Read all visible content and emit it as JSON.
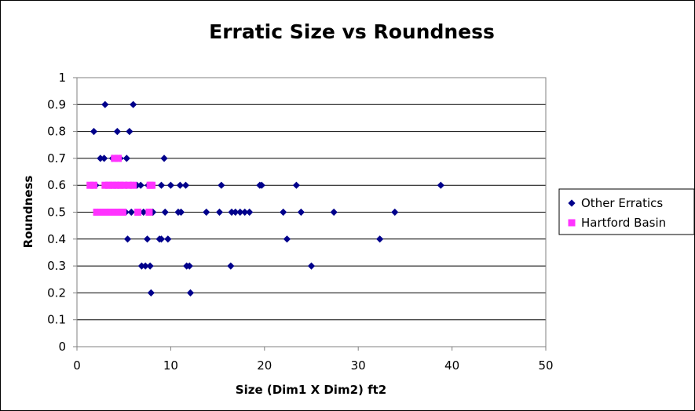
{
  "chart_data": {
    "type": "scatter",
    "title": "Erratic Size vs Roundness",
    "xlabel": "Size (Dim1 X Dim2) ft2",
    "ylabel": "Roundness",
    "xlim": [
      0,
      50
    ],
    "ylim": [
      0,
      1
    ],
    "x_ticks": [
      "0",
      "10",
      "20",
      "30",
      "40",
      "50"
    ],
    "y_ticks": [
      "0",
      "0.1",
      "0.2",
      "0.3",
      "0.4",
      "0.5",
      "0.6",
      "0.7",
      "0.8",
      "0.9",
      "1"
    ],
    "grid": "horizontal",
    "legend_position": "right",
    "series": [
      {
        "name": "Other Erratics",
        "marker": "diamond",
        "color": "#00008B",
        "points": [
          [
            3.0,
            0.9
          ],
          [
            6.0,
            0.9
          ],
          [
            1.8,
            0.8
          ],
          [
            4.3,
            0.8
          ],
          [
            5.6,
            0.8
          ],
          [
            2.5,
            0.7
          ],
          [
            2.9,
            0.7
          ],
          [
            3.8,
            0.7
          ],
          [
            4.6,
            0.7
          ],
          [
            5.3,
            0.7
          ],
          [
            9.3,
            0.7
          ],
          [
            2.0,
            0.6
          ],
          [
            3.1,
            0.6
          ],
          [
            3.7,
            0.6
          ],
          [
            4.1,
            0.6
          ],
          [
            4.4,
            0.6
          ],
          [
            5.3,
            0.6
          ],
          [
            6.0,
            0.6
          ],
          [
            6.4,
            0.6
          ],
          [
            6.8,
            0.6
          ],
          [
            7.6,
            0.6
          ],
          [
            9.0,
            0.6
          ],
          [
            10.0,
            0.6
          ],
          [
            11.0,
            0.6
          ],
          [
            11.6,
            0.6
          ],
          [
            15.4,
            0.6
          ],
          [
            19.5,
            0.6
          ],
          [
            19.7,
            0.6
          ],
          [
            23.4,
            0.6
          ],
          [
            38.8,
            0.6
          ],
          [
            2.2,
            0.5
          ],
          [
            3.3,
            0.5
          ],
          [
            4.5,
            0.5
          ],
          [
            5.2,
            0.5
          ],
          [
            5.8,
            0.5
          ],
          [
            7.1,
            0.5
          ],
          [
            7.8,
            0.5
          ],
          [
            8.1,
            0.5
          ],
          [
            9.4,
            0.5
          ],
          [
            10.8,
            0.5
          ],
          [
            11.1,
            0.5
          ],
          [
            13.8,
            0.5
          ],
          [
            15.2,
            0.5
          ],
          [
            16.5,
            0.5
          ],
          [
            16.9,
            0.5
          ],
          [
            17.4,
            0.5
          ],
          [
            17.9,
            0.5
          ],
          [
            18.4,
            0.5
          ],
          [
            22.0,
            0.5
          ],
          [
            23.9,
            0.5
          ],
          [
            27.4,
            0.5
          ],
          [
            33.9,
            0.5
          ],
          [
            5.4,
            0.4
          ],
          [
            7.5,
            0.4
          ],
          [
            8.8,
            0.4
          ],
          [
            9.0,
            0.4
          ],
          [
            9.7,
            0.4
          ],
          [
            22.4,
            0.4
          ],
          [
            32.3,
            0.4
          ],
          [
            6.9,
            0.3
          ],
          [
            7.3,
            0.3
          ],
          [
            7.8,
            0.3
          ],
          [
            11.7,
            0.3
          ],
          [
            12.0,
            0.3
          ],
          [
            16.4,
            0.3
          ],
          [
            25.0,
            0.3
          ],
          [
            7.9,
            0.2
          ],
          [
            12.1,
            0.2
          ]
        ]
      },
      {
        "name": "Hartford Basin",
        "marker": "square",
        "color": "#FF33FF",
        "points": [
          [
            4.0,
            0.7
          ],
          [
            4.4,
            0.7
          ],
          [
            1.4,
            0.6
          ],
          [
            1.8,
            0.6
          ],
          [
            3.0,
            0.6
          ],
          [
            3.4,
            0.6
          ],
          [
            3.8,
            0.6
          ],
          [
            4.2,
            0.6
          ],
          [
            4.6,
            0.6
          ],
          [
            5.0,
            0.6
          ],
          [
            5.5,
            0.6
          ],
          [
            6.0,
            0.6
          ],
          [
            7.8,
            0.6
          ],
          [
            8.0,
            0.6
          ],
          [
            2.1,
            0.5
          ],
          [
            2.5,
            0.5
          ],
          [
            2.9,
            0.5
          ],
          [
            3.3,
            0.5
          ],
          [
            3.7,
            0.5
          ],
          [
            4.1,
            0.5
          ],
          [
            4.5,
            0.5
          ],
          [
            4.9,
            0.5
          ],
          [
            6.5,
            0.5
          ],
          [
            7.7,
            0.5
          ]
        ]
      }
    ]
  }
}
